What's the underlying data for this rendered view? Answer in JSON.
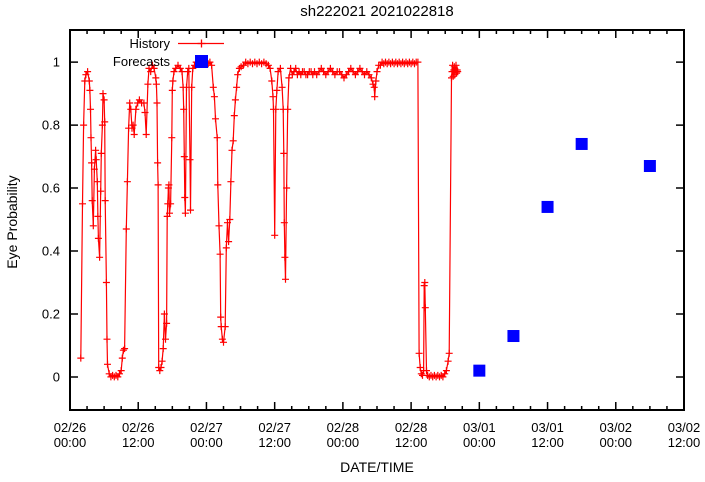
{
  "title": "sh222021 2021022818",
  "colors": {
    "history": "#ff0000",
    "forecast": "#0000ff",
    "axis": "#000000",
    "background": "#ffffff"
  },
  "legend": {
    "history_label": "History",
    "forecasts_label": "Forecasts"
  },
  "chart_data": {
    "type": "line",
    "title": "sh222021 2021022818",
    "xlabel": "DATE/TIME",
    "ylabel": "Eye Probability",
    "grid": false,
    "legend_position": "top-left-inside",
    "x_unit": "hours since 2021-02-26 00:00",
    "x_range_hours": [
      0,
      108
    ],
    "y_range": [
      -0.105,
      1.102
    ],
    "y_ticks": [
      0,
      0.2,
      0.4,
      0.6,
      0.8,
      1
    ],
    "y_tick_labels": [
      "0",
      "0.2",
      "0.4",
      "0.6",
      "0.8",
      "1"
    ],
    "x_minor_tick_interval_hours": 3,
    "x_major_ticks": [
      {
        "hours": 0,
        "label": [
          "02/26",
          "00:00"
        ]
      },
      {
        "hours": 12,
        "label": [
          "02/26",
          "12:00"
        ]
      },
      {
        "hours": 24,
        "label": [
          "02/27",
          "00:00"
        ]
      },
      {
        "hours": 36,
        "label": [
          "02/27",
          "12:00"
        ]
      },
      {
        "hours": 48,
        "label": [
          "02/28",
          "00:00"
        ]
      },
      {
        "hours": 60,
        "label": [
          "02/28",
          "12:00"
        ]
      },
      {
        "hours": 72,
        "label": [
          "03/01",
          "00:00"
        ]
      },
      {
        "hours": 84,
        "label": [
          "03/01",
          "12:00"
        ]
      },
      {
        "hours": 96,
        "label": [
          "03/02",
          "00:00"
        ]
      },
      {
        "hours": 108,
        "label": [
          "03/02",
          "12:00"
        ]
      }
    ],
    "series": [
      {
        "name": "History",
        "color": "#ff0000",
        "style": "line+markers",
        "marker": "plus",
        "points": [
          [
            1.9,
            0.06
          ],
          [
            2.2,
            0.55
          ],
          [
            2.4,
            0.8
          ],
          [
            2.6,
            0.94
          ],
          [
            2.8,
            0.96
          ],
          [
            3.1,
            0.97
          ],
          [
            3.4,
            0.94
          ],
          [
            3.5,
            0.91
          ],
          [
            3.6,
            0.85
          ],
          [
            3.7,
            0.76
          ],
          [
            3.8,
            0.68
          ],
          [
            3.9,
            0.56
          ],
          [
            4.1,
            0.48
          ],
          [
            4.3,
            0.66
          ],
          [
            4.5,
            0.72
          ],
          [
            4.6,
            0.69
          ],
          [
            4.8,
            0.62
          ],
          [
            4.9,
            0.51
          ],
          [
            5.0,
            0.44
          ],
          [
            5.2,
            0.38
          ],
          [
            5.4,
            0.59
          ],
          [
            5.5,
            0.71
          ],
          [
            5.7,
            0.8
          ],
          [
            5.8,
            0.9
          ],
          [
            6.0,
            0.88
          ],
          [
            6.1,
            0.81
          ],
          [
            6.2,
            0.56
          ],
          [
            6.4,
            0.3
          ],
          [
            6.5,
            0.12
          ],
          [
            6.6,
            0.04
          ],
          [
            6.9,
            0.01
          ],
          [
            7.2,
            0
          ],
          [
            7.5,
            0.005
          ],
          [
            7.8,
            0
          ],
          [
            8.1,
            0.005
          ],
          [
            8.4,
            0
          ],
          [
            8.7,
            0.01
          ],
          [
            9.0,
            0.02
          ],
          [
            9.2,
            0.06
          ],
          [
            9.4,
            0.085
          ],
          [
            9.6,
            0.09
          ],
          [
            9.9,
            0.47
          ],
          [
            10.1,
            0.62
          ],
          [
            10.3,
            0.79
          ],
          [
            10.5,
            0.87
          ],
          [
            10.7,
            0.85
          ],
          [
            10.9,
            0.79
          ],
          [
            11.1,
            0.8
          ],
          [
            11.3,
            0.77
          ],
          [
            11.6,
            0.85
          ],
          [
            11.9,
            0.87
          ],
          [
            12.2,
            0.88
          ],
          [
            12.6,
            0.87
          ],
          [
            13.0,
            0.87
          ],
          [
            13.2,
            0.84
          ],
          [
            13.4,
            0.77
          ],
          [
            13.7,
            0.93
          ],
          [
            13.9,
            0.98
          ],
          [
            14.2,
            0.97
          ],
          [
            14.5,
            0.99
          ],
          [
            14.8,
            0.98
          ],
          [
            15.1,
            0.95
          ],
          [
            15.2,
            0.93
          ],
          [
            15.3,
            0.87
          ],
          [
            15.4,
            0.68
          ],
          [
            15.5,
            0.61
          ],
          [
            15.6,
            0.03
          ],
          [
            15.8,
            0.02
          ],
          [
            16.0,
            0.03
          ],
          [
            16.2,
            0.05
          ],
          [
            16.4,
            0.09
          ],
          [
            16.6,
            0.2
          ],
          [
            16.8,
            0.12
          ],
          [
            17.0,
            0.17
          ],
          [
            17.1,
            0.51
          ],
          [
            17.2,
            0.55
          ],
          [
            17.3,
            0.6
          ],
          [
            17.4,
            0.61
          ],
          [
            17.5,
            0.52
          ],
          [
            17.7,
            0.55
          ],
          [
            17.9,
            0.76
          ],
          [
            18.0,
            0.91
          ],
          [
            18.1,
            0.94
          ],
          [
            18.3,
            0.97
          ],
          [
            18.6,
            0.98
          ],
          [
            19.0,
            0.99
          ],
          [
            19.4,
            0.98
          ],
          [
            19.7,
            0.97
          ],
          [
            19.9,
            0.92
          ],
          [
            20.0,
            0.85
          ],
          [
            20.1,
            0.7
          ],
          [
            20.2,
            0.57
          ],
          [
            20.3,
            0.52
          ],
          [
            20.5,
            0.92
          ],
          [
            20.7,
            0.97
          ],
          [
            20.9,
            0.98
          ],
          [
            21.1,
            0.69
          ],
          [
            21.2,
            0.53
          ],
          [
            21.4,
            0.92
          ],
          [
            21.6,
            0.98
          ],
          [
            21.9,
            0.99
          ],
          [
            22.2,
            1
          ],
          [
            22.5,
            0.995
          ],
          [
            22.8,
            1
          ],
          [
            23.1,
            0.995
          ],
          [
            23.4,
            1
          ],
          [
            23.7,
            0.995
          ],
          [
            24.0,
            1
          ],
          [
            24.3,
            0.995
          ],
          [
            24.6,
            1
          ],
          [
            24.9,
            0.99
          ],
          [
            25.2,
            0.92
          ],
          [
            25.4,
            0.89
          ],
          [
            25.6,
            0.82
          ],
          [
            25.9,
            0.76
          ],
          [
            26.0,
            0.61
          ],
          [
            26.2,
            0.48
          ],
          [
            26.4,
            0.39
          ],
          [
            26.5,
            0.19
          ],
          [
            26.6,
            0.16
          ],
          [
            26.8,
            0.12
          ],
          [
            27.0,
            0.11
          ],
          [
            27.3,
            0.16
          ],
          [
            27.5,
            0.41
          ],
          [
            27.7,
            0.49
          ],
          [
            27.9,
            0.43
          ],
          [
            28.1,
            0.5
          ],
          [
            28.3,
            0.62
          ],
          [
            28.5,
            0.72
          ],
          [
            28.7,
            0.75
          ],
          [
            28.9,
            0.83
          ],
          [
            29.1,
            0.88
          ],
          [
            29.3,
            0.92
          ],
          [
            29.5,
            0.96
          ],
          [
            29.8,
            0.98
          ],
          [
            30.1,
            0.985
          ],
          [
            30.5,
            0.99
          ],
          [
            30.9,
            1
          ],
          [
            31.3,
            0.995
          ],
          [
            31.7,
            1
          ],
          [
            32.1,
            0.995
          ],
          [
            32.5,
            1
          ],
          [
            32.9,
            0.995
          ],
          [
            33.3,
            1
          ],
          [
            33.7,
            0.995
          ],
          [
            34.1,
            1
          ],
          [
            34.5,
            0.995
          ],
          [
            34.9,
            0.99
          ],
          [
            35.2,
            0.98
          ],
          [
            35.5,
            0.94
          ],
          [
            35.7,
            0.89
          ],
          [
            35.8,
            0.85
          ],
          [
            36.0,
            0.45
          ],
          [
            36.2,
            0.85
          ],
          [
            36.4,
            0.91
          ],
          [
            36.6,
            0.97
          ],
          [
            37.0,
            0.98
          ],
          [
            37.3,
            0.92
          ],
          [
            37.5,
            0.85
          ],
          [
            37.6,
            0.71
          ],
          [
            37.7,
            0.49
          ],
          [
            37.8,
            0.38
          ],
          [
            37.9,
            0.31
          ],
          [
            38.1,
            0.6
          ],
          [
            38.3,
            0.85
          ],
          [
            38.5,
            0.95
          ],
          [
            38.8,
            0.98
          ],
          [
            39.1,
            0.96
          ],
          [
            39.4,
            0.97
          ],
          [
            39.7,
            0.98
          ],
          [
            40.0,
            0.96
          ],
          [
            40.3,
            0.97
          ],
          [
            40.6,
            0.96
          ],
          [
            40.9,
            0.97
          ],
          [
            41.2,
            0.97
          ],
          [
            41.5,
            0.96
          ],
          [
            41.8,
            0.96
          ],
          [
            42.1,
            0.97
          ],
          [
            42.4,
            0.97
          ],
          [
            42.7,
            0.96
          ],
          [
            43.0,
            0.97
          ],
          [
            43.4,
            0.96
          ],
          [
            43.8,
            0.97
          ],
          [
            44.2,
            0.98
          ],
          [
            44.6,
            0.97
          ],
          [
            45.0,
            0.96
          ],
          [
            45.4,
            0.97
          ],
          [
            45.8,
            0.98
          ],
          [
            46.2,
            0.97
          ],
          [
            46.6,
            0.96
          ],
          [
            47.0,
            0.97
          ],
          [
            47.4,
            0.97
          ],
          [
            47.8,
            0.96
          ],
          [
            48.2,
            0.95
          ],
          [
            48.6,
            0.96
          ],
          [
            49.0,
            0.97
          ],
          [
            49.4,
            0.98
          ],
          [
            49.8,
            0.97
          ],
          [
            50.2,
            0.96
          ],
          [
            50.6,
            0.97
          ],
          [
            51.0,
            0.98
          ],
          [
            51.4,
            0.97
          ],
          [
            51.8,
            0.96
          ],
          [
            52.2,
            0.97
          ],
          [
            52.6,
            0.96
          ],
          [
            53.0,
            0.95
          ],
          [
            53.3,
            0.93
          ],
          [
            53.5,
            0.92
          ],
          [
            53.6,
            0.89
          ],
          [
            53.8,
            0.94
          ],
          [
            54.0,
            0.97
          ],
          [
            54.3,
            0.99
          ],
          [
            54.6,
            0.99
          ],
          [
            54.9,
            1
          ],
          [
            55.2,
            0.995
          ],
          [
            55.5,
            1
          ],
          [
            55.8,
            0.995
          ],
          [
            56.1,
            1
          ],
          [
            56.4,
            0.995
          ],
          [
            56.7,
            1
          ],
          [
            57.0,
            0.995
          ],
          [
            57.3,
            1
          ],
          [
            57.6,
            0.995
          ],
          [
            57.9,
            1
          ],
          [
            58.2,
            0.995
          ],
          [
            58.5,
            1
          ],
          [
            58.8,
            0.995
          ],
          [
            59.1,
            1
          ],
          [
            59.4,
            0.995
          ],
          [
            59.7,
            1
          ],
          [
            60.0,
            0.995
          ],
          [
            60.3,
            1
          ],
          [
            60.6,
            0.995
          ],
          [
            60.9,
            1
          ],
          [
            61.2,
            1
          ],
          [
            61.4,
            0.075
          ],
          [
            61.6,
            0.03
          ],
          [
            61.8,
            0.01
          ],
          [
            62.0,
            0.005
          ],
          [
            62.2,
            0.02
          ],
          [
            62.3,
            0.29
          ],
          [
            62.4,
            0.3
          ],
          [
            62.5,
            0.22
          ],
          [
            62.7,
            0.02
          ],
          [
            62.9,
            0.005
          ],
          [
            63.2,
            0
          ],
          [
            63.5,
            0.005
          ],
          [
            63.8,
            0
          ],
          [
            64.1,
            0.005
          ],
          [
            64.4,
            0
          ],
          [
            64.7,
            0.005
          ],
          [
            65.0,
            0
          ],
          [
            65.3,
            0.005
          ],
          [
            65.6,
            0
          ],
          [
            65.9,
            0.01
          ],
          [
            66.2,
            0.02
          ],
          [
            66.5,
            0.05
          ],
          [
            66.7,
            0.075
          ],
          [
            67.1,
            0.95
          ],
          [
            67.2,
            0.97
          ],
          [
            67.3,
            0.99
          ],
          [
            67.4,
            0.955
          ],
          [
            67.5,
            0.975
          ],
          [
            67.6,
            0.985
          ],
          [
            67.7,
            0.96
          ],
          [
            67.8,
            0.975
          ],
          [
            67.9,
            0.99
          ],
          [
            68.0,
            0.965
          ],
          [
            68.1,
            0.975
          ],
          [
            68.2,
            0.97
          ]
        ]
      },
      {
        "name": "Forecasts",
        "color": "#0000ff",
        "style": "markers",
        "marker": "filled-square",
        "points": [
          [
            72,
            0.02
          ],
          [
            78,
            0.13
          ],
          [
            84,
            0.54
          ],
          [
            90,
            0.74
          ],
          [
            102,
            0.67
          ]
        ]
      }
    ]
  }
}
